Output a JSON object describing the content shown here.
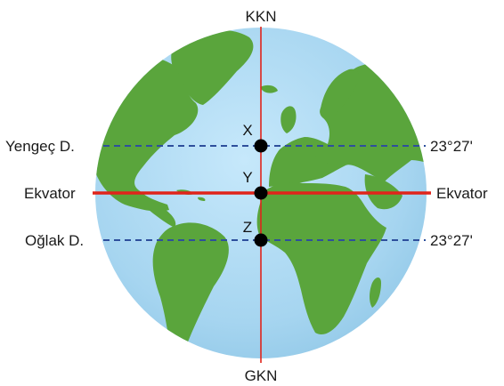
{
  "diagram": {
    "poles": {
      "north": "KKN",
      "south": "GKN"
    },
    "lines": {
      "cancer": {
        "left_label": "Yengeç D.",
        "right_label": "23°27'"
      },
      "equator": {
        "left_label": "Ekvator",
        "right_label": "Ekvator"
      },
      "capricorn": {
        "left_label": "Oğlak D.",
        "right_label": "23°27'"
      }
    },
    "points": {
      "x": "X",
      "y": "Y",
      "z": "Z"
    },
    "colors": {
      "ocean": "#a9d8f2",
      "land": "#5aa53c",
      "equator": "#e0241b",
      "meridian": "#e0241b",
      "tropics": "#2e4f9c",
      "points": "#000000"
    }
  }
}
